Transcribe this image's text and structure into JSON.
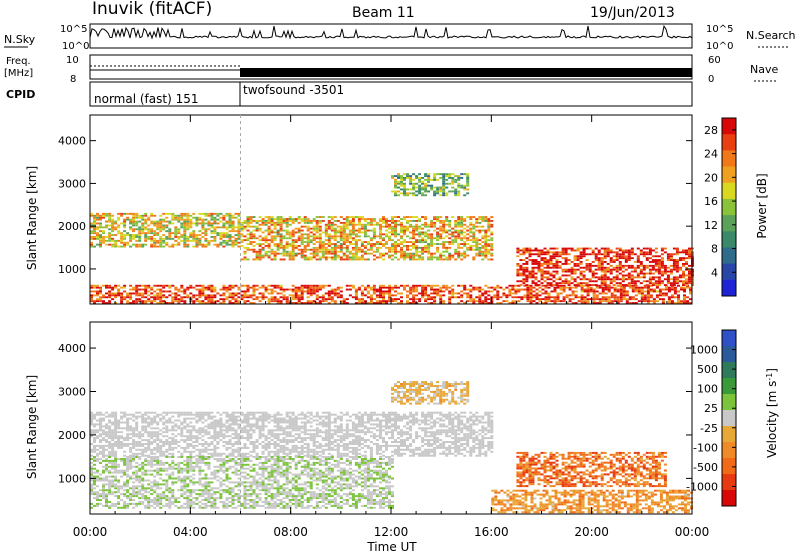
{
  "header": {
    "station": "Inuvik (fitACF)",
    "beam": "Beam 11",
    "date": "19/Jun/2013"
  },
  "strips": {
    "nsky_label": "N.Sky",
    "nsearch_label": "N.Search",
    "freq_label_line1": "Freq.",
    "freq_label_line2": "[MHz]",
    "nave_label": "Nave",
    "cpid_label": "CPID",
    "left_ticks_top": [
      "10^5",
      "10^0"
    ],
    "right_ticks_top": [
      "10^5",
      "10^0"
    ],
    "left_ticks_freq": [
      "10",
      "8"
    ],
    "right_ticks_nave": [
      "60",
      "0"
    ],
    "cpid_segments": [
      {
        "label": "normal (fast) 151",
        "start_hour": 0,
        "end_hour": 6
      },
      {
        "label": "twofsound -3501",
        "start_hour": 6,
        "end_hour": 24
      }
    ]
  },
  "colors": {
    "power_scale": [
      "#1f23d6",
      "#2846a8",
      "#2f6b8a",
      "#3a8a6a",
      "#5aa25a",
      "#8ac33a",
      "#d8d820",
      "#f0a020",
      "#f07818",
      "#e84010",
      "#d80808"
    ],
    "velocity_scale": [
      "#3050c8",
      "#2a5a9a",
      "#2e7a5a",
      "#3a9a3a",
      "#7cc43c",
      "#c8c8c8",
      "#e8a838",
      "#f08a28",
      "#f06a18",
      "#e83a10",
      "#d80808"
    ]
  },
  "chart_data": [
    {
      "type": "heatmap",
      "title": "",
      "xlabel": "",
      "ylabel": "Slant Range [km]",
      "x_ticks": [
        "00:00",
        "04:00",
        "08:00",
        "12:00",
        "16:00",
        "20:00",
        "00:00"
      ],
      "xlim_hours": [
        0,
        24
      ],
      "y_ticks": [
        1000,
        2000,
        3000,
        4000
      ],
      "ylim": [
        180,
        4600
      ],
      "colorbar": {
        "label": "Power [dB]",
        "ticks": [
          4,
          8,
          12,
          16,
          20,
          24,
          28
        ],
        "range": [
          0,
          30
        ]
      },
      "features": [
        {
          "hour_start": 0,
          "hour_end": 6,
          "range_start": 1500,
          "range_end": 2300,
          "value": 18
        },
        {
          "hour_start": 6,
          "hour_end": 16,
          "range_start": 1200,
          "range_end": 2200,
          "value": 20
        },
        {
          "hour_start": 0,
          "hour_end": 24,
          "range_start": 180,
          "range_end": 600,
          "value": 26
        },
        {
          "hour_start": 17,
          "hour_end": 24,
          "range_start": 600,
          "range_end": 1500,
          "value": 28
        },
        {
          "hour_start": 12,
          "hour_end": 15,
          "range_start": 2700,
          "range_end": 3200,
          "value": 14
        }
      ]
    },
    {
      "type": "heatmap",
      "title": "",
      "xlabel": "Time UT",
      "ylabel": "Slant Range [km]",
      "x_ticks": [
        "00:00",
        "04:00",
        "08:00",
        "12:00",
        "16:00",
        "20:00",
        "00:00"
      ],
      "xlim_hours": [
        0,
        24
      ],
      "y_ticks": [
        1000,
        2000,
        3000,
        4000
      ],
      "ylim": [
        180,
        4600
      ],
      "colorbar": {
        "label": "Velocity [m s^-1]",
        "ticks": [
          "1000",
          "500",
          "100",
          "25",
          "-25",
          "-100",
          "-500",
          "-1000"
        ],
        "range": [
          -1000,
          1000
        ]
      },
      "features": [
        {
          "hour_start": 0,
          "hour_end": 16,
          "range_start": 1500,
          "range_end": 2500,
          "value": 0
        },
        {
          "hour_start": 0,
          "hour_end": 12,
          "range_start": 300,
          "range_end": 1500,
          "value": 60
        },
        {
          "hour_start": 16,
          "hour_end": 24,
          "range_start": 200,
          "range_end": 700,
          "value": -300
        },
        {
          "hour_start": 17,
          "hour_end": 23,
          "range_start": 800,
          "range_end": 1600,
          "value": -500
        },
        {
          "hour_start": 12,
          "hour_end": 15,
          "range_start": 2700,
          "range_end": 3200,
          "value": -150
        }
      ]
    }
  ]
}
